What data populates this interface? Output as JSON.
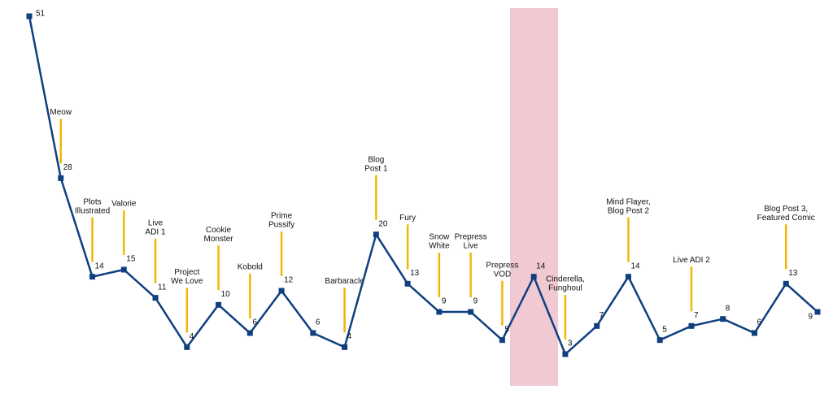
{
  "chart_data": {
    "type": "line",
    "categories": [
      null,
      null,
      null,
      null,
      null,
      null,
      null,
      null,
      null,
      null,
      null,
      null,
      null,
      null,
      null,
      null,
      null,
      null,
      null,
      null,
      null,
      null,
      null,
      null,
      null,
      null
    ],
    "values": [
      51,
      28,
      14,
      15,
      11,
      4,
      10,
      6,
      12,
      6,
      4,
      20,
      13,
      9,
      9,
      5,
      14,
      3,
      7,
      14,
      5,
      7,
      8,
      6,
      13,
      9
    ],
    "color": "#0f3f7f",
    "annotation_color": "#f2b705",
    "annotations": [
      null,
      [
        "Meow"
      ],
      [
        "Plots",
        "Illustrated"
      ],
      [
        "Valorie"
      ],
      [
        "Live",
        "ADI 1"
      ],
      [
        "Project",
        "We Love"
      ],
      [
        "Cookie",
        "Monster"
      ],
      [
        "Kobold"
      ],
      [
        "Prime",
        "Pussify"
      ],
      null,
      [
        "Barbaracle"
      ],
      [
        "Blog",
        "Post 1"
      ],
      [
        "Fury"
      ],
      [
        "Snow",
        "White"
      ],
      [
        "Prepress",
        "Live"
      ],
      [
        "Prepress",
        "VOD"
      ],
      null,
      [
        "Cinderella,",
        "Funghoul"
      ],
      null,
      [
        "Mind Flayer,",
        "Blog Post 2"
      ],
      null,
      [
        "Live ADI 2"
      ],
      null,
      null,
      [
        "Blog Post 3,",
        "Featured Comic"
      ],
      null
    ],
    "ylim": [
      0,
      51
    ]
  }
}
